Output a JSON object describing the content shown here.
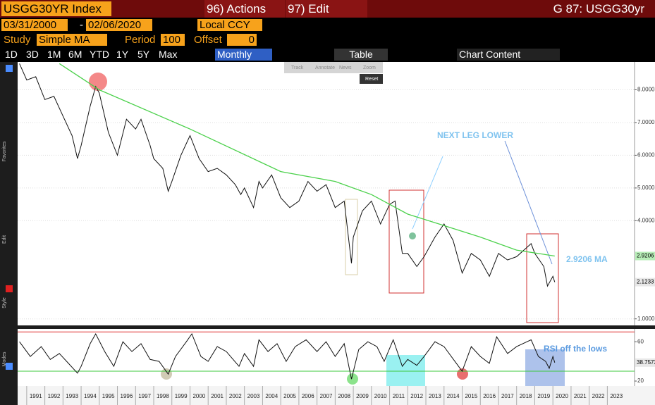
{
  "header": {
    "ticker": "USGG30YR Index",
    "actions": "96) Actions",
    "edit": "97) Edit",
    "page": "G 87: USGG30yr"
  },
  "controls": {
    "start": "03/31/2000",
    "sep": "-",
    "end": "02/06/2020",
    "currency": "Local CCY",
    "study_label": "Study",
    "study": "Simple MA",
    "period_label": "Period",
    "period": 100,
    "offset_label": "Offset",
    "offset": 0,
    "ranges": [
      "1D",
      "3D",
      "1M",
      "6M",
      "YTD",
      "1Y",
      "5Y",
      "Max"
    ],
    "frequency": "Monthly",
    "table": "Table",
    "chart_content": "Chart Content",
    "tools": [
      "Track",
      "Annotate",
      "News",
      "Zoom"
    ],
    "reset": "Reset",
    "sidebar": [
      "Favorites",
      "Edit",
      "Style",
      "Modes"
    ]
  },
  "chart_data": [
    {
      "type": "line",
      "xlim": [
        1990.5,
        2024.5
      ],
      "ylim": [
        0.8,
        8.85
      ],
      "yticks": [
        {
          "value": 1,
          "label": "1.0000"
        },
        {
          "value": 4,
          "label": "4.0000"
        },
        {
          "value": 5,
          "label": "5.0000"
        },
        {
          "value": 6,
          "label": "6.0000"
        },
        {
          "value": 7,
          "label": "7.0000"
        },
        {
          "value": 8,
          "label": "8.0000"
        }
      ],
      "grid": true,
      "series": [
        {
          "color": "#111111",
          "x": [
            1990.6,
            1991.0,
            1991.5,
            1992.0,
            1992.5,
            1993.0,
            1993.5,
            1993.8,
            1994.0,
            1994.5,
            1994.8,
            1995.0,
            1995.5,
            1996.0,
            1996.5,
            1997.0,
            1997.3,
            1997.8,
            1998.0,
            1998.5,
            1998.8,
            1999.0,
            1999.5,
            2000.0,
            2000.5,
            2001.0,
            2001.5,
            2002.0,
            2002.5,
            2002.8,
            2003.0,
            2003.5,
            2003.8,
            2004.0,
            2004.5,
            2005.0,
            2005.5,
            2006.0,
            2006.5,
            2007.0,
            2007.5,
            2008.0,
            2008.5,
            2008.9,
            2009.0,
            2009.5,
            2010.0,
            2010.5,
            2011.0,
            2011.3,
            2011.7,
            2012.0,
            2012.5,
            2012.9,
            2013.5,
            2014.0,
            2014.5,
            2015.0,
            2015.5,
            2016.0,
            2016.5,
            2017.0,
            2017.5,
            2018.0,
            2018.8,
            2019.0,
            2019.5,
            2019.7,
            2020.0,
            2020.1
          ],
          "values": [
            8.8,
            8.3,
            8.4,
            7.7,
            7.8,
            7.2,
            6.6,
            5.9,
            6.3,
            7.5,
            8.1,
            7.9,
            6.7,
            6.0,
            7.1,
            6.8,
            7.1,
            6.3,
            5.9,
            5.6,
            4.9,
            5.2,
            6.0,
            6.6,
            5.9,
            5.5,
            5.6,
            5.4,
            5.1,
            4.8,
            5.0,
            4.4,
            5.2,
            5.0,
            5.4,
            4.7,
            4.4,
            4.6,
            5.2,
            4.9,
            5.1,
            4.4,
            4.6,
            2.7,
            3.5,
            4.3,
            4.6,
            3.9,
            4.5,
            4.6,
            3.0,
            3.0,
            2.6,
            2.9,
            3.5,
            3.9,
            3.4,
            2.4,
            3.0,
            2.8,
            2.3,
            3.0,
            2.8,
            2.9,
            3.3,
            3.0,
            2.6,
            2.0,
            2.3,
            2.1233
          ]
        },
        {
          "color": "#4cd14c",
          "x": [
            1992.8,
            1995.0,
            2000.0,
            2005.0,
            2008.0,
            2010.0,
            2012.0,
            2014.0,
            2016.0,
            2018.0,
            2020.1
          ],
          "values": [
            8.8,
            8.0,
            6.8,
            5.5,
            5.2,
            4.8,
            4.2,
            3.85,
            3.5,
            3.1,
            2.9206
          ]
        }
      ],
      "annotations": [
        "NEXT LEG LOWER",
        "2.9206 MA"
      ]
    },
    {
      "type": "line",
      "xlim": [
        1990.5,
        2024.5
      ],
      "ylim": [
        15,
        73
      ],
      "yticks": [
        20,
        60
      ],
      "hlines": [
        {
          "value": 70,
          "color": "#e03030"
        },
        {
          "value": 30,
          "color": "#3cc83c"
        }
      ],
      "xticks": [
        1991,
        1992,
        1993,
        1994,
        1995,
        1996,
        1997,
        1998,
        1999,
        2000,
        2001,
        2002,
        2003,
        2004,
        2005,
        2006,
        2007,
        2008,
        2009,
        2010,
        2011,
        2012,
        2013,
        2014,
        2015,
        2016,
        2017,
        2018,
        2019,
        2020,
        2021,
        2022,
        2023
      ],
      "series": [
        {
          "color": "#111111",
          "x": [
            1990.6,
            1991.2,
            1991.8,
            1992.3,
            1992.8,
            1993.3,
            1993.8,
            1994.0,
            1994.5,
            1994.8,
            1995.3,
            1995.8,
            1996.3,
            1996.8,
            1997.3,
            1997.8,
            1998.3,
            1998.8,
            1999.2,
            1999.8,
            2000.1,
            2000.6,
            2001.0,
            2001.5,
            2002.0,
            2002.7,
            2003.0,
            2003.5,
            2003.8,
            2004.3,
            2004.8,
            2005.3,
            2005.8,
            2006.4,
            2007.0,
            2007.5,
            2008.0,
            2008.5,
            2008.9,
            2009.3,
            2009.8,
            2010.3,
            2010.7,
            2011.2,
            2011.7,
            2012.0,
            2012.5,
            2012.9,
            2013.5,
            2014.0,
            2014.6,
            2015.0,
            2015.5,
            2016.0,
            2016.5,
            2016.9,
            2017.5,
            2018.0,
            2018.8,
            2019.2,
            2019.6,
            2019.8,
            2020.0,
            2020.1
          ],
          "values": [
            60,
            45,
            55,
            42,
            48,
            38,
            28,
            35,
            58,
            68,
            50,
            35,
            60,
            50,
            58,
            42,
            40,
            27,
            45,
            60,
            68,
            45,
            40,
            55,
            50,
            35,
            48,
            35,
            62,
            50,
            58,
            40,
            55,
            62,
            50,
            60,
            45,
            58,
            22,
            52,
            60,
            55,
            40,
            62,
            35,
            42,
            36,
            45,
            60,
            55,
            40,
            30,
            55,
            45,
            38,
            65,
            48,
            55,
            62,
            45,
            40,
            33,
            45,
            38.7573
          ]
        }
      ],
      "annotations": [
        "RSI off the lows"
      ]
    }
  ]
}
